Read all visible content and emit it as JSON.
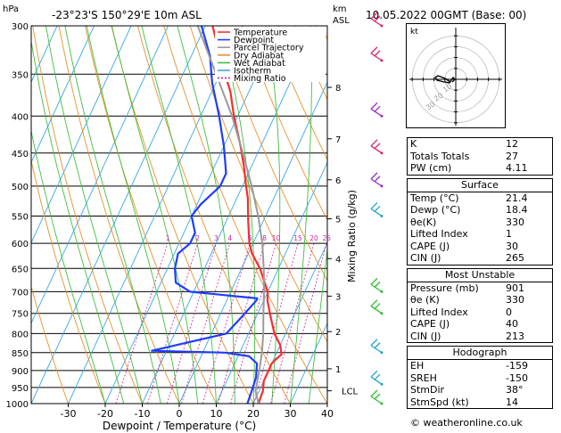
{
  "header": {
    "hpa_label": "hPa",
    "location": "-23°23'S  150°29'E  10m  ASL",
    "km_label": "km",
    "asl_label": "ASL",
    "date": "10.05.2022  00GMT  (Base: 00)"
  },
  "legend": [
    {
      "label": "Temperature",
      "color": "#ff2a2a",
      "dash": "none"
    },
    {
      "label": "Dewpoint",
      "color": "#1f3cff",
      "dash": "none"
    },
    {
      "label": "Parcel Trajectory",
      "color": "#9a9a9a",
      "dash": "none"
    },
    {
      "label": "Dry Adiabat",
      "color": "#e8912a",
      "dash": "none"
    },
    {
      "label": "Wet Adiabat",
      "color": "#3fbf3f",
      "dash": "none"
    },
    {
      "label": "Isotherm",
      "color": "#38a8e8",
      "dash": "none"
    },
    {
      "label": "Mixing Ratio",
      "color": "#d0209a",
      "dash": "2,2"
    }
  ],
  "chart_data": {
    "type": "line",
    "title": "",
    "xlabel": "Dewpoint / Temperature (°C)",
    "ylabel": "hPa",
    "right_axis_label": "Mixing Ratio (g/kg)",
    "xlim": [
      -35,
      40
    ],
    "ylim": [
      1000,
      300
    ],
    "pressure_ticks": [
      300,
      350,
      400,
      450,
      500,
      550,
      600,
      650,
      700,
      750,
      800,
      850,
      900,
      950,
      1000
    ],
    "temp_ticks": [
      -30,
      -20,
      -10,
      0,
      10,
      20,
      30,
      40
    ],
    "km_ticks": [
      {
        "label": "8",
        "p": 365
      },
      {
        "label": "7",
        "p": 430
      },
      {
        "label": "6",
        "p": 490
      },
      {
        "label": "5",
        "p": 555
      },
      {
        "label": "4",
        "p": 630
      },
      {
        "label": "3",
        "p": 710
      },
      {
        "label": "2",
        "p": 795
      },
      {
        "label": "1",
        "p": 895
      },
      {
        "label": "LCL",
        "p": 960
      }
    ],
    "mixing_ratio_labels": [
      {
        "label": "1",
        "t": -7
      },
      {
        "label": "2",
        "t": 2
      },
      {
        "label": "3",
        "t": 7
      },
      {
        "label": "4",
        "t": 11
      },
      {
        "label": "6",
        "t": 16
      },
      {
        "label": "8",
        "t": 19.5
      },
      {
        "label": "10",
        "t": 22.5
      },
      {
        "label": "15",
        "t": 28
      },
      {
        "label": "20",
        "t": 32
      },
      {
        "label": "25",
        "t": 35
      }
    ],
    "series": [
      {
        "name": "Temperature",
        "color": "#ff2a2a",
        "p": [
          1000,
          960,
          930,
          900,
          880,
          870,
          855,
          830,
          800,
          760,
          720,
          700,
          680,
          650,
          620,
          600,
          560,
          520,
          500,
          470,
          440,
          400,
          370,
          340,
          300
        ],
        "t": [
          21.4,
          21,
          20,
          20,
          20,
          20.5,
          21.5,
          20,
          17,
          14,
          11,
          10,
          8,
          5,
          1,
          -1,
          -4,
          -7,
          -9,
          -12,
          -15.5,
          -21,
          -25,
          -30.5,
          -38
        ]
      },
      {
        "name": "Dewpoint",
        "color": "#1f3cff",
        "p": [
          1000,
          960,
          920,
          880,
          860,
          850,
          845,
          800,
          760,
          720,
          715,
          700,
          680,
          650,
          620,
          600,
          580,
          550,
          530,
          500,
          480,
          440,
          400,
          360,
          330,
          300
        ],
        "t": [
          18.4,
          18,
          17.5,
          16,
          13,
          6,
          -14,
          4,
          6,
          8,
          8,
          -11,
          -16,
          -18,
          -19,
          -17,
          -17,
          -20,
          -19,
          -16,
          -16,
          -20,
          -25,
          -31,
          -35,
          -41
        ]
      },
      {
        "name": "Parcel Trajectory",
        "color": "#9a9a9a",
        "p": [
          1000,
          960,
          900,
          850,
          800,
          750,
          700,
          650,
          600,
          550,
          500,
          450,
          400,
          350,
          300
        ],
        "t": [
          21.4,
          19,
          17.5,
          16,
          14,
          11.5,
          9,
          6,
          2.5,
          -2,
          -7.5,
          -14,
          -21.5,
          -31,
          -42
        ]
      }
    ]
  },
  "hodograph": {
    "label": "kt",
    "rings": [
      10,
      20,
      30,
      40
    ]
  },
  "indices": {
    "general": [
      {
        "label": "K",
        "value": "12"
      },
      {
        "label": "Totals Totals",
        "value": "27"
      },
      {
        "label": "PW (cm)",
        "value": "4.11"
      }
    ],
    "surface": {
      "title": "Surface",
      "rows": [
        {
          "label": "Temp (°C)",
          "value": "21.4"
        },
        {
          "label": "Dewp (°C)",
          "value": "18.4"
        },
        {
          "label": "θe(K)",
          "value": "330"
        },
        {
          "label": "Lifted Index",
          "value": "1"
        },
        {
          "label": "CAPE (J)",
          "value": "30"
        },
        {
          "label": "CIN (J)",
          "value": "265"
        }
      ]
    },
    "most_unstable": {
      "title": "Most Unstable",
      "rows": [
        {
          "label": "Pressure (mb)",
          "value": "901"
        },
        {
          "label": "θe (K)",
          "value": "330"
        },
        {
          "label": "Lifted Index",
          "value": "0"
        },
        {
          "label": "CAPE (J)",
          "value": "40"
        },
        {
          "label": "CIN (J)",
          "value": "213"
        }
      ]
    },
    "hodograph_block": {
      "title": "Hodograph",
      "rows": [
        {
          "label": "EH",
          "value": "-159"
        },
        {
          "label": "SREH",
          "value": "-150"
        },
        {
          "label": "StmDir",
          "value": "38°"
        },
        {
          "label": "StmSpd (kt)",
          "value": "14"
        }
      ]
    }
  },
  "footer": "© weatheronline.co.uk",
  "colors": {
    "dry_adiabat": "#e8912a",
    "wet_adiabat": "#3fbf3f",
    "isotherm": "#38a8e8",
    "mixing_ratio": "#d0209a",
    "wind_barb_upper": "#e0206a",
    "wind_barb_mid": "#9a2cd0",
    "wind_barb_low": "#1fa6c8",
    "wind_barb_surface": "#2ec02e"
  }
}
